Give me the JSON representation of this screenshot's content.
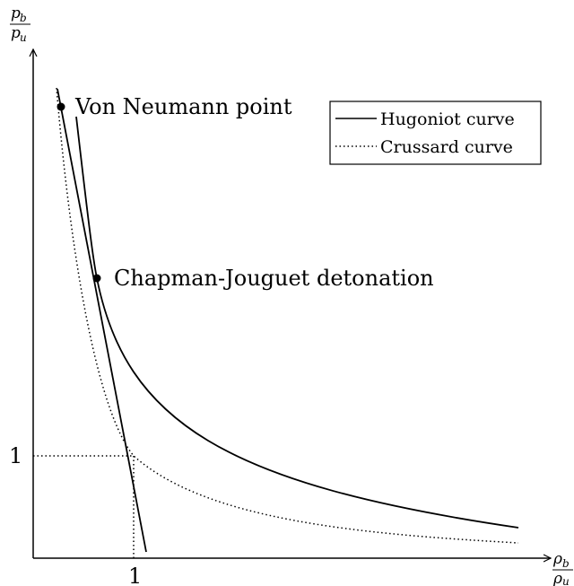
{
  "axes": {
    "y_label": {
      "numerator": "p",
      "numerator_sub": "b",
      "denominator": "p",
      "denominator_sub": "u"
    },
    "x_label": {
      "numerator": "ρ",
      "numerator_sub": "b",
      "denominator": "ρ",
      "denominator_sub": "u"
    },
    "x_tick": "1",
    "y_tick": "1"
  },
  "points": [
    {
      "label": "Von Neumann point"
    },
    {
      "label": "Chapman-Jouguet detonation"
    }
  ],
  "legend": [
    {
      "label": "Hugoniot curve"
    },
    {
      "label": "Crussard curve"
    }
  ]
}
